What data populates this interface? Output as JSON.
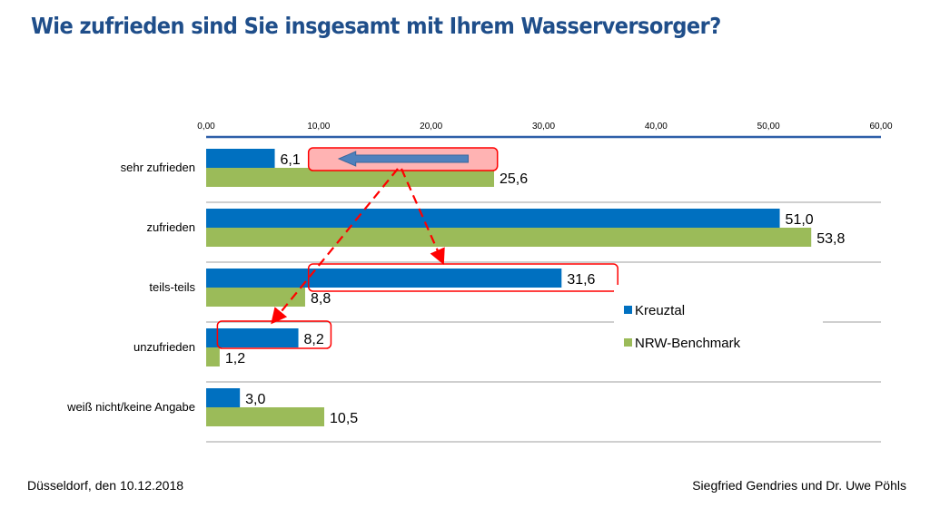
{
  "title": "Wie zufrieden sind Sie insgesamt mit Ihrem Wasserversorger?",
  "footer": {
    "left": "Düsseldorf, den 10.12.2018",
    "right": "Siegfried Gendries und Dr. Uwe Pöhls"
  },
  "colors": {
    "title": "#1f4e8a",
    "kreuztal": "#0070c0",
    "nrw": "#9bbb59",
    "highlight": "#ff0000",
    "highlight_fill": "#ffb3b3",
    "arrow": "#4f81bd"
  },
  "chart_data": {
    "type": "bar",
    "orientation": "horizontal",
    "title": "Wie zufrieden sind Sie insgesamt mit Ihrem Wasserversorger?",
    "categories": [
      "sehr zufrieden",
      "zufrieden",
      "teils-teils",
      "unzufrieden",
      "weiß nicht/keine Angabe"
    ],
    "series": [
      {
        "name": "Kreuztal",
        "values": [
          6.1,
          51.0,
          31.6,
          8.2,
          3.0
        ],
        "labels": [
          "6,1",
          "51,0",
          "31,6",
          "8,2",
          "3,0"
        ]
      },
      {
        "name": "NRW-Benchmark",
        "values": [
          25.6,
          53.8,
          8.8,
          1.2,
          10.5
        ],
        "labels": [
          "25,6",
          "53,8",
          "8,8",
          "1,2",
          "10,5"
        ]
      }
    ],
    "xlim": [
      0,
      60
    ],
    "xticks": [
      0,
      10,
      20,
      30,
      40,
      50,
      60
    ],
    "xtick_labels": [
      "0,00",
      "10,00",
      "20,00",
      "30,00",
      "40,00",
      "50,00",
      "60,00"
    ],
    "xaxis_position": "top",
    "xlabel": "",
    "ylabel": "",
    "grid": false,
    "legend": {
      "position": "right",
      "entries": [
        "Kreuztal",
        "NRW-Benchmark"
      ]
    },
    "annotations": [
      {
        "type": "highlight-box-with-left-arrow",
        "category": "sehr zufrieden",
        "series": "Kreuztal",
        "from_value": 9,
        "to_value": 26
      },
      {
        "type": "highlight-box",
        "category": "teils-teils",
        "series": "Kreuztal",
        "from_value": 9,
        "to_value": 36.5
      },
      {
        "type": "highlight-box",
        "category": "unzufrieden",
        "series": "Kreuztal",
        "from_value": 1,
        "to_value": 11
      },
      {
        "type": "dashed-arrow",
        "from_category": "sehr zufrieden",
        "to_category": "teils-teils"
      },
      {
        "type": "dashed-arrow",
        "from_category": "sehr zufrieden",
        "to_category": "unzufrieden"
      }
    ]
  }
}
